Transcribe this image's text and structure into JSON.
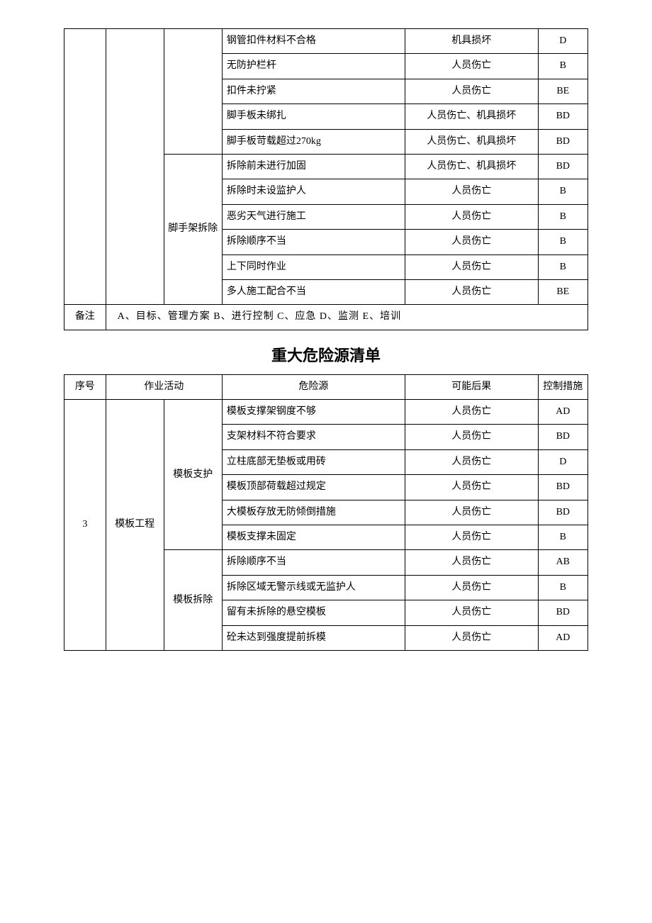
{
  "table1": {
    "group1": "",
    "group2_label": "脚手架拆除",
    "rows1": [
      {
        "hazard": "钢管扣件材料不合格",
        "consequence": "机具损坏",
        "measure": "D"
      },
      {
        "hazard": "无防护栏杆",
        "consequence": "人员伤亡",
        "measure": "B"
      },
      {
        "hazard": "扣件未拧紧",
        "consequence": "人员伤亡",
        "measure": "BE"
      },
      {
        "hazard": "脚手板未绑扎",
        "consequence": "人员伤亡、机具损坏",
        "measure": "BD"
      },
      {
        "hazard": "脚手板苛载超过270kg",
        "consequence": "人员伤亡、机具损坏",
        "measure": "BD"
      }
    ],
    "rows2": [
      {
        "hazard": "拆除前未进行加固",
        "consequence": "人员伤亡、机具损坏",
        "measure": "BD"
      },
      {
        "hazard": "拆除时未设监护人",
        "consequence": "人员伤亡",
        "measure": "B"
      },
      {
        "hazard": "恶劣天气进行施工",
        "consequence": "人员伤亡",
        "measure": "B"
      },
      {
        "hazard": "拆除顺序不当",
        "consequence": "人员伤亡",
        "measure": "B"
      },
      {
        "hazard": "上下同时作业",
        "consequence": "人员伤亡",
        "measure": "B"
      },
      {
        "hazard": "多人施工配合不当",
        "consequence": "人员伤亡",
        "measure": "BE"
      }
    ],
    "note_label": "备注",
    "note_text": "A、目标、管理方案   B、进行控制   C、应急   D、监测   E、培训"
  },
  "title2": "重大危险源清单",
  "table2": {
    "headers": {
      "seq": "序号",
      "activity": "作业活动",
      "hazard": "危险源",
      "consequence": "可能后果",
      "measure": "控制措施"
    },
    "seq_val": "3",
    "activity_main": "模板工程",
    "sub1_label": "模板支护",
    "sub2_label": "模板拆除",
    "rows_sub1": [
      {
        "hazard": "模板支撑架钢度不够",
        "consequence": "人员伤亡",
        "measure": "AD"
      },
      {
        "hazard": "支架材料不符合要求",
        "consequence": "人员伤亡",
        "measure": "BD"
      },
      {
        "hazard": "立柱底部无垫板或用砖",
        "consequence": "人员伤亡",
        "measure": "D"
      },
      {
        "hazard": "模板顶部荷载超过规定",
        "consequence": "人员伤亡",
        "measure": "BD"
      },
      {
        "hazard": "大模板存放无防倾倒措施",
        "consequence": "人员伤亡",
        "measure": "BD"
      },
      {
        "hazard": "模板支撑未固定",
        "consequence": "人员伤亡",
        "measure": "B"
      }
    ],
    "rows_sub2": [
      {
        "hazard": "拆除顺序不当",
        "consequence": "人员伤亡",
        "measure": "AB"
      },
      {
        "hazard": "拆除区域无警示线或无监护人",
        "consequence": "人员伤亡",
        "measure": "B"
      },
      {
        "hazard": "留有未拆除的悬空模板",
        "consequence": "人员伤亡",
        "measure": "BD"
      },
      {
        "hazard": "砼未达到强度提前拆模",
        "consequence": "人员伤亡",
        "measure": "AD"
      }
    ]
  }
}
